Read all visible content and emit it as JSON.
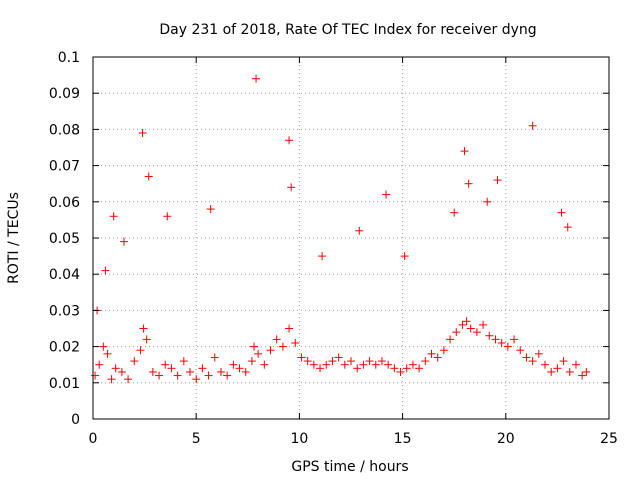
{
  "chart_data": {
    "type": "scatter",
    "title": "Day 231 of 2018, Rate Of TEC Index for receiver dyng",
    "xlabel": "GPS time / hours",
    "ylabel": "ROTI / TECUs",
    "xlim": [
      0,
      25
    ],
    "ylim": [
      0,
      0.1
    ],
    "x_ticks": [
      0,
      5,
      10,
      15,
      20,
      25
    ],
    "y_ticks": [
      0,
      0.01,
      0.02,
      0.03,
      0.04,
      0.05,
      0.06,
      0.07,
      0.08,
      0.09,
      0.1
    ],
    "x_tick_labels": [
      "0",
      "5",
      "10",
      "15",
      "20",
      "25"
    ],
    "y_tick_labels": [
      "0",
      "0.01",
      "0.02",
      "0.03",
      "0.04",
      "0.05",
      "0.06",
      "0.07",
      "0.08",
      "0.09",
      "0.1"
    ],
    "grid": true,
    "marker": "+",
    "series": [
      {
        "name": "ROTI",
        "color": "#ff0000",
        "x": [
          0.1,
          0.3,
          0.5,
          0.7,
          0.9,
          1.1,
          1.4,
          1.7,
          2.0,
          2.3,
          2.45,
          2.6,
          2.9,
          3.2,
          3.5,
          3.8,
          4.1,
          4.4,
          4.7,
          5.0,
          5.3,
          5.6,
          5.9,
          6.2,
          6.5,
          6.8,
          7.1,
          7.4,
          7.7,
          7.8,
          8.0,
          8.3,
          8.6,
          8.9,
          9.2,
          9.5,
          9.8,
          10.1,
          10.4,
          10.7,
          11.0,
          11.3,
          11.6,
          11.9,
          12.2,
          12.5,
          12.8,
          13.1,
          13.4,
          13.7,
          14.0,
          14.3,
          14.6,
          14.9,
          15.2,
          15.5,
          15.8,
          16.1,
          16.4,
          16.7,
          17.0,
          17.3,
          17.6,
          17.9,
          18.1,
          18.3,
          18.6,
          18.9,
          19.2,
          19.5,
          19.8,
          20.1,
          20.4,
          20.7,
          21.0,
          21.3,
          21.6,
          21.9,
          22.2,
          22.5,
          22.8,
          23.1,
          23.4,
          23.7,
          23.9,
          0.2,
          0.6,
          1.0,
          1.5,
          2.4,
          2.7,
          3.6,
          5.7,
          7.9,
          9.5,
          9.6,
          11.1,
          12.9,
          14.2,
          15.1,
          17.5,
          18.0,
          18.2,
          19.1,
          19.6,
          21.3,
          22.7,
          23.0
        ],
        "y": [
          0.012,
          0.015,
          0.02,
          0.018,
          0.011,
          0.014,
          0.013,
          0.011,
          0.016,
          0.019,
          0.025,
          0.022,
          0.013,
          0.012,
          0.015,
          0.014,
          0.012,
          0.016,
          0.013,
          0.011,
          0.014,
          0.012,
          0.017,
          0.013,
          0.012,
          0.015,
          0.014,
          0.013,
          0.016,
          0.02,
          0.018,
          0.015,
          0.019,
          0.022,
          0.02,
          0.025,
          0.021,
          0.017,
          0.016,
          0.015,
          0.014,
          0.015,
          0.016,
          0.017,
          0.015,
          0.016,
          0.014,
          0.015,
          0.016,
          0.015,
          0.016,
          0.015,
          0.014,
          0.013,
          0.014,
          0.015,
          0.014,
          0.016,
          0.018,
          0.017,
          0.019,
          0.022,
          0.024,
          0.026,
          0.027,
          0.025,
          0.024,
          0.026,
          0.023,
          0.022,
          0.021,
          0.02,
          0.022,
          0.019,
          0.017,
          0.016,
          0.018,
          0.015,
          0.013,
          0.014,
          0.016,
          0.013,
          0.015,
          0.012,
          0.013,
          0.03,
          0.041,
          0.056,
          0.049,
          0.079,
          0.067,
          0.056,
          0.058,
          0.094,
          0.077,
          0.064,
          0.045,
          0.052,
          0.062,
          0.045,
          0.057,
          0.074,
          0.065,
          0.06,
          0.066,
          0.081,
          0.057,
          0.053
        ]
      }
    ]
  }
}
